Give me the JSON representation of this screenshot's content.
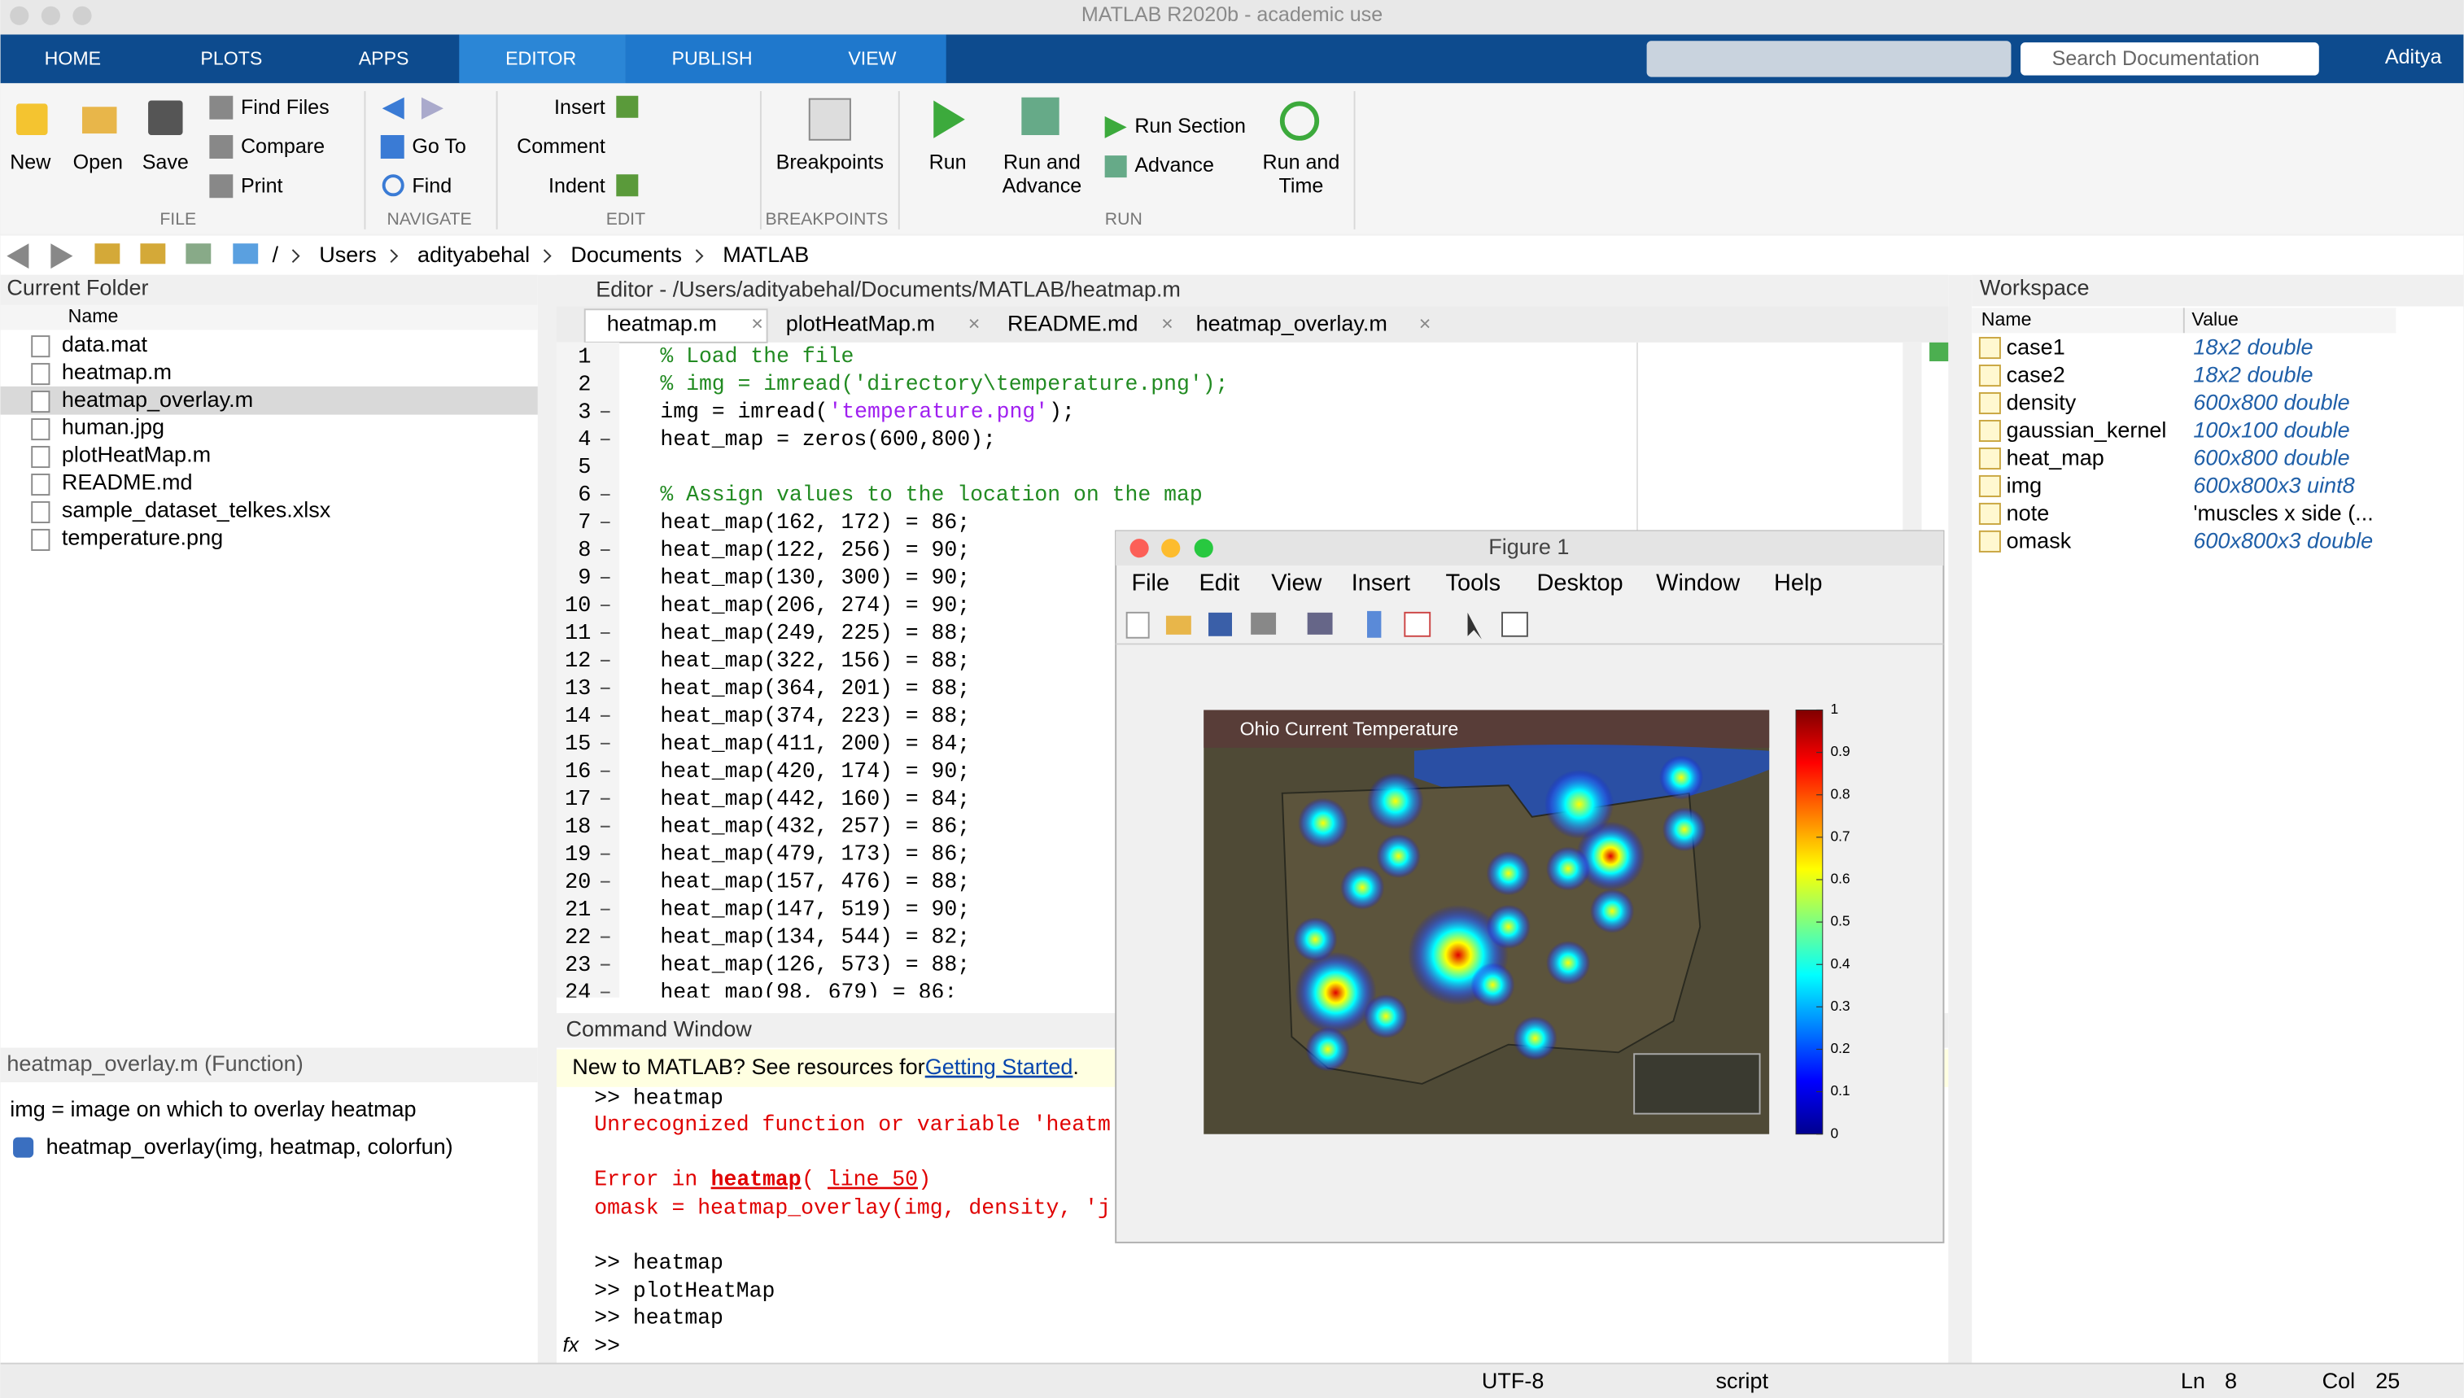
{
  "window_title": "MATLAB R2020b - academic use",
  "tabs": [
    "HOME",
    "PLOTS",
    "APPS",
    "EDITOR",
    "PUBLISH",
    "VIEW"
  ],
  "search_placeholder": "Search Documentation",
  "user": "Aditya",
  "ribbon": [
    {
      "label": "FILE",
      "items": [
        "New",
        "Open",
        "Save",
        "Find Files",
        "Compare",
        "Print"
      ]
    },
    {
      "label": "NAVIGATE",
      "items": [
        "Go To",
        "Find"
      ]
    },
    {
      "label": "EDIT",
      "items": [
        "Insert",
        "Comment",
        "Indent"
      ]
    },
    {
      "label": "BREAKPOINTS",
      "items": [
        "Breakpoints"
      ]
    },
    {
      "label": "RUN",
      "items": [
        "Run",
        "Run and",
        "Advance",
        "Run Section",
        "Advance",
        "Run and",
        "Time"
      ]
    }
  ],
  "path": [
    "/",
    "Users",
    "adityabehal",
    "Documents",
    "MATLAB"
  ],
  "current_folder": {
    "title": "Current Folder",
    "column": "Name",
    "files": [
      "data.mat",
      "heatmap.m",
      "heatmap_overlay.m",
      "human.jpg",
      "plotHeatMap.m",
      "README.md",
      "sample_dataset_telkes.xlsx",
      "temperature.png"
    ],
    "details_title": "heatmap_overlay.m  (Function)",
    "details": [
      "img = image on which to overlay heatmap",
      "heatmap_overlay(img, heatmap, colorfun)"
    ]
  },
  "editor": {
    "title": "Editor - /Users/adityabehal/Documents/MATLAB/heatmap.m",
    "tabs": [
      "heatmap.m",
      "plotHeatMap.m",
      "README.md",
      "heatmap_overlay.m"
    ],
    "lines": [
      {
        "num": 1,
        "parts": [
          {
            "text": "% Load the file",
            "color": "#228b22"
          }
        ]
      },
      {
        "num": 2,
        "parts": [
          {
            "text": "% img = imread('directory\\temperature.png');",
            "color": "#228b22"
          }
        ]
      },
      {
        "num": 3,
        "parts": [
          {
            "text": "img = imread("
          },
          {
            "text": "'temperature.png'",
            "color": "#a020f0"
          },
          {
            "text": ");"
          }
        ]
      },
      {
        "num": 4,
        "parts": [
          {
            "text": "heat_map = zeros(600,800);"
          }
        ]
      },
      {
        "num": 5
      },
      {
        "num": 6,
        "parts": [
          {
            "text": "% Assign values to the location on the map",
            "color": "#228b22"
          }
        ]
      },
      {
        "num": 7,
        "parts": [
          {
            "text": "heat_map(162, 172) = 86;"
          }
        ]
      },
      {
        "num": 8,
        "parts": [
          {
            "text": "heat_map(122, 256) = 90;"
          }
        ]
      },
      {
        "num": 9,
        "parts": [
          {
            "text": "heat_map(130, 300) = 90;"
          }
        ]
      },
      {
        "num": 10,
        "parts": [
          {
            "text": "heat_map(206, 274) = 90;"
          }
        ]
      },
      {
        "num": 11,
        "parts": [
          {
            "text": "heat_map(249, 225) = 88;"
          }
        ]
      },
      {
        "num": 12,
        "parts": [
          {
            "text": "heat_map(322, 156) = 88;"
          }
        ]
      },
      {
        "num": 13,
        "parts": [
          {
            "text": "heat_map(364, 201) = 88;"
          }
        ]
      },
      {
        "num": 14,
        "parts": [
          {
            "text": "heat_map(374, 223) = 88;"
          }
        ]
      },
      {
        "num": 15,
        "parts": [
          {
            "text": "heat_map(411, 200) = 84;"
          }
        ]
      },
      {
        "num": 16,
        "parts": [
          {
            "text": "heat_map(420, 174) = 90;"
          }
        ]
      },
      {
        "num": 17,
        "parts": [
          {
            "text": "heat_map(442, 160) = 84;"
          }
        ]
      },
      {
        "num": 18,
        "parts": [
          {
            "text": "heat_map(432, 257) = 86;"
          }
        ]
      },
      {
        "num": 19,
        "parts": [
          {
            "text": "heat_map(479, 173) = 86;"
          }
        ]
      },
      {
        "num": 20,
        "parts": [
          {
            "text": "heat_map(157, 476) = 88;"
          }
        ]
      },
      {
        "num": 21,
        "parts": [
          {
            "text": "heat_map(147, 519) = 90;"
          }
        ]
      },
      {
        "num": 22,
        "parts": [
          {
            "text": "heat_map(134, 544) = 82;"
          }
        ]
      },
      {
        "num": 23,
        "parts": [
          {
            "text": "heat_map(126, 573) = 88;"
          }
        ]
      },
      {
        "num": 24,
        "parts": [
          {
            "text": "heat_map(98, 679) = 86;"
          }
        ]
      }
    ]
  },
  "command_window": {
    "title": "Command Window",
    "banner": {
      "text": "New to MATLAB? See resources for ",
      "link": "Getting Started",
      "end": "."
    },
    "lines": [
      {
        "parts": [
          {
            "text": ">> heatmap"
          }
        ]
      },
      {
        "parts": [
          {
            "text": "Unrecognized function or variable 'heatm",
            "color": "#e00000"
          }
        ]
      },
      {
        "parts": [
          {
            "text": "Error in ",
            "color": "#e00000"
          },
          {
            "text": "heatmap",
            "color": "#e00000",
            "style": "bold-link"
          },
          {
            "text": " (",
            "color": "#e00000"
          },
          {
            "text": "line 50",
            "color": "#e00000",
            "style": "link"
          },
          {
            "text": ")",
            "color": "#e00000"
          }
        ]
      },
      {
        "parts": [
          {
            "text": "omask = heatmap_overlay(img, density, 'j",
            "color": "#e00000"
          }
        ]
      },
      {
        "parts": [
          {
            "text": ">> heatmap"
          }
        ]
      },
      {
        "parts": [
          {
            "text": ">> plotHeatMap"
          }
        ]
      },
      {
        "parts": [
          {
            "text": ">> heatmap"
          }
        ]
      },
      {
        "parts": [
          {
            "text": ">>"
          }
        ]
      }
    ]
  },
  "workspace": {
    "title": "Workspace",
    "columns": [
      "Name",
      "Value"
    ],
    "rows": [
      {
        "name": "case1",
        "value": "18x2 double",
        "color": "#1f5fa8"
      },
      {
        "name": "case2",
        "value": "18x2 double",
        "color": "#1f5fa8"
      },
      {
        "name": "density",
        "value": "600x800 double",
        "color": "#1f5fa8"
      },
      {
        "name": "gaussian_kernel",
        "value": "100x100 double",
        "color": "#1f5fa8"
      },
      {
        "name": "heat_map",
        "value": "600x800 double",
        "color": "#1f5fa8"
      },
      {
        "name": "img",
        "value": "600x800x3 uint8",
        "color": "#1f5fa8"
      },
      {
        "name": "note",
        "value": "'muscles x side (...",
        "color": "#000000"
      },
      {
        "name": "omask",
        "value": "600x800x3 double",
        "color": "#1f5fa8"
      }
    ]
  },
  "figure": {
    "title": "Figure 1",
    "menus": [
      "File",
      "Edit",
      "View",
      "Insert",
      "Tools",
      "Desktop",
      "Window",
      "Help"
    ],
    "image_title": "Ohio Current Temperature",
    "colorbar": {
      "lim": [
        0,
        1
      ],
      "ticks": [
        0,
        0.1,
        0.2,
        0.3,
        0.4,
        0.5,
        0.6,
        0.7,
        0.8,
        0.9,
        1
      ]
    }
  },
  "status_bar": [
    "UTF-8",
    "script",
    "Ln",
    "8",
    "Col",
    "25"
  ]
}
